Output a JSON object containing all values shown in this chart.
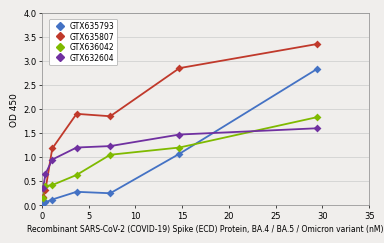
{
  "title": "",
  "xlabel": "Recombinant SARS-CoV-2 (COVID-19) Spike (ECD) Protein, BA.4 / BA.5 / Omicron variant (nM)",
  "ylabel": "OD 450",
  "xlim": [
    0,
    35
  ],
  "ylim": [
    0,
    4
  ],
  "yticks": [
    0,
    0.5,
    1,
    1.5,
    2,
    2.5,
    3,
    3.5,
    4
  ],
  "xticks": [
    0,
    5,
    10,
    15,
    20,
    25,
    30,
    35
  ],
  "series": [
    {
      "label": "GTX635793",
      "color": "#4472C4",
      "marker": "D",
      "x": [
        0.12,
        0.37,
        1.1,
        3.7,
        7.3,
        14.7,
        29.4
      ],
      "y": [
        0.05,
        0.06,
        0.12,
        0.28,
        0.25,
        1.07,
        2.83
      ],
      "p0": [
        10.0,
        40.0,
        1.8
      ]
    },
    {
      "label": "GTX635807",
      "color": "#C0392B",
      "marker": "D",
      "x": [
        0.12,
        0.37,
        1.1,
        3.7,
        7.3,
        14.7,
        29.4
      ],
      "y": [
        0.18,
        0.32,
        1.18,
        1.9,
        1.85,
        2.85,
        3.35
      ],
      "p0": [
        3.5,
        1.0,
        0.8
      ]
    },
    {
      "label": "GTX636042",
      "color": "#7FBA00",
      "marker": "D",
      "x": [
        0.12,
        0.37,
        1.1,
        3.7,
        7.3,
        14.7,
        29.4
      ],
      "y": [
        0.15,
        0.4,
        0.42,
        0.63,
        1.05,
        1.2,
        1.83
      ],
      "p0": [
        2.0,
        5.0,
        1.0
      ]
    },
    {
      "label": "GTX632604",
      "color": "#7030A0",
      "marker": "D",
      "x": [
        0.12,
        0.37,
        1.1,
        3.7,
        7.3,
        14.7,
        29.4
      ],
      "y": [
        0.35,
        0.65,
        0.95,
        1.2,
        1.23,
        1.47,
        1.6
      ],
      "p0": [
        1.8,
        0.5,
        0.7
      ]
    }
  ],
  "background_color": "#F0EEEC",
  "grid_color": "#CCCCCC",
  "marker_size": 16,
  "linewidth": 1.3,
  "legend_fontsize": 5.5,
  "axis_fontsize": 5.5,
  "tick_fontsize": 6.0,
  "ylabel_fontsize": 6.5
}
